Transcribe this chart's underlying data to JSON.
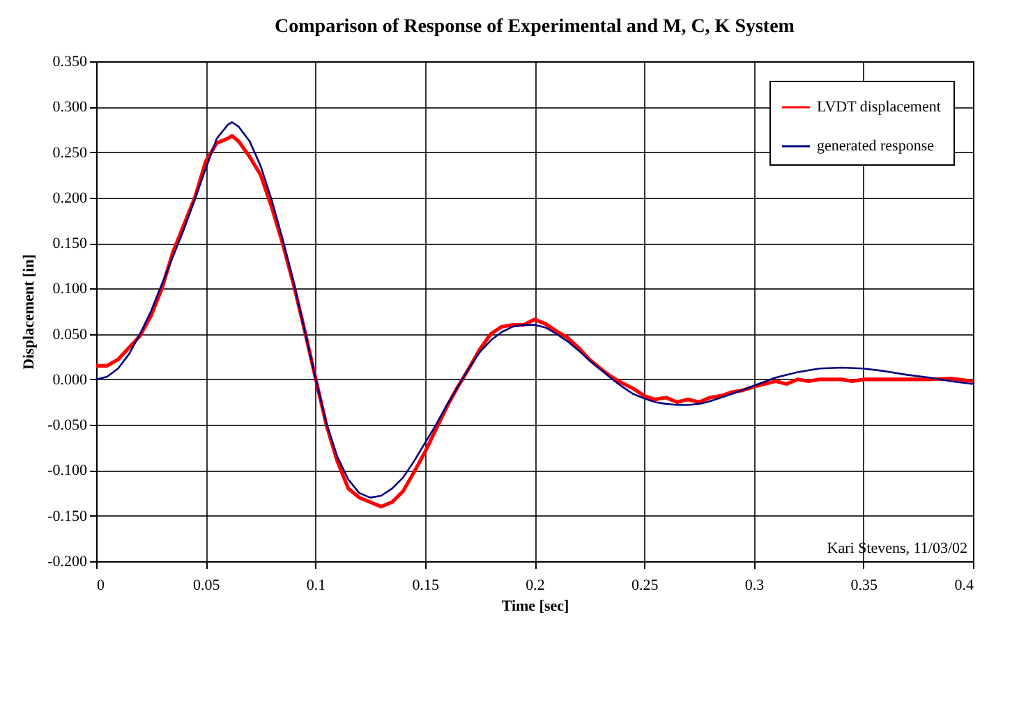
{
  "chart_data": {
    "type": "line",
    "title": "Comparison of Response of Experimental and M, C, K System",
    "xlabel": "Time [sec]",
    "ylabel": "Displacement [in]",
    "annotations": [
      "Kari Stevens, 11/03/02"
    ],
    "xlim": [
      0,
      0.4
    ],
    "xticks": [
      0,
      0.05,
      0.1,
      0.15,
      0.2,
      0.25,
      0.3,
      0.35,
      0.4
    ],
    "ylim": [
      -0.2,
      0.35
    ],
    "yticks": [
      {
        "value": -0.2,
        "label": "-0.200"
      },
      {
        "value": -0.15,
        "label": "-0.150"
      },
      {
        "value": -0.1,
        "label": "-0.100"
      },
      {
        "value": -0.05,
        "label": "-0.050"
      },
      {
        "value": 0,
        "label": "0.000"
      },
      {
        "value": 0.05,
        "label": "0.050"
      },
      {
        "value": 0.1,
        "label": "0.100"
      },
      {
        "value": 0.15,
        "label": "0.150"
      },
      {
        "value": 0.2,
        "label": "0.200"
      },
      {
        "value": 0.25,
        "label": "0.250"
      },
      {
        "value": 0.3,
        "label": "0.300"
      },
      {
        "value": 0.35,
        "label": "0.350"
      }
    ],
    "grid": true,
    "legend": "top right",
    "marker": "none",
    "line_style": "solid",
    "series": [
      {
        "name": "LVDT displacement",
        "color": "#ff0000",
        "x": [
          0,
          0.005,
          0.01,
          0.015,
          0.02,
          0.025,
          0.03,
          0.035,
          0.04,
          0.045,
          0.05,
          0.055,
          0.06,
          0.062,
          0.065,
          0.07,
          0.075,
          0.08,
          0.085,
          0.09,
          0.095,
          0.1,
          0.105,
          0.11,
          0.115,
          0.12,
          0.125,
          0.13,
          0.135,
          0.14,
          0.145,
          0.15,
          0.155,
          0.16,
          0.165,
          0.17,
          0.175,
          0.18,
          0.185,
          0.19,
          0.195,
          0.2,
          0.205,
          0.21,
          0.215,
          0.22,
          0.225,
          0.23,
          0.235,
          0.24,
          0.245,
          0.25,
          0.255,
          0.26,
          0.265,
          0.27,
          0.275,
          0.28,
          0.285,
          0.29,
          0.295,
          0.3,
          0.305,
          0.31,
          0.315,
          0.32,
          0.325,
          0.33,
          0.335,
          0.34,
          0.345,
          0.35,
          0.36,
          0.37,
          0.38,
          0.39,
          0.4
        ],
        "values": [
          0.015,
          0.015,
          0.022,
          0.035,
          0.048,
          0.07,
          0.1,
          0.14,
          0.17,
          0.2,
          0.24,
          0.26,
          0.265,
          0.268,
          0.262,
          0.245,
          0.225,
          0.19,
          0.15,
          0.105,
          0.055,
          0.002,
          -0.05,
          -0.09,
          -0.12,
          -0.13,
          -0.135,
          -0.14,
          -0.135,
          -0.123,
          -0.102,
          -0.08,
          -0.055,
          -0.03,
          -0.008,
          0.012,
          0.033,
          0.05,
          0.058,
          0.06,
          0.06,
          0.066,
          0.061,
          0.053,
          0.046,
          0.035,
          0.022,
          0.012,
          0.003,
          -0.004,
          -0.01,
          -0.018,
          -0.022,
          -0.02,
          -0.025,
          -0.022,
          -0.025,
          -0.02,
          -0.018,
          -0.014,
          -0.012,
          -0.008,
          -0.005,
          -0.002,
          -0.005,
          0,
          -0.002,
          0,
          0,
          0,
          -0.002,
          0,
          0,
          0,
          0,
          0.001,
          -0.002
        ]
      },
      {
        "name": "generated response",
        "color": "#000080",
        "x": [
          0,
          0.005,
          0.01,
          0.015,
          0.02,
          0.025,
          0.03,
          0.035,
          0.04,
          0.045,
          0.05,
          0.055,
          0.06,
          0.062,
          0.065,
          0.07,
          0.075,
          0.08,
          0.085,
          0.09,
          0.095,
          0.1,
          0.105,
          0.11,
          0.115,
          0.12,
          0.125,
          0.13,
          0.135,
          0.14,
          0.145,
          0.15,
          0.155,
          0.16,
          0.165,
          0.17,
          0.175,
          0.18,
          0.185,
          0.19,
          0.195,
          0.2,
          0.205,
          0.21,
          0.215,
          0.22,
          0.225,
          0.23,
          0.235,
          0.24,
          0.245,
          0.25,
          0.255,
          0.26,
          0.265,
          0.27,
          0.275,
          0.28,
          0.29,
          0.3,
          0.31,
          0.32,
          0.33,
          0.34,
          0.35,
          0.36,
          0.37,
          0.38,
          0.39,
          0.4
        ],
        "values": [
          0,
          0.003,
          0.012,
          0.028,
          0.05,
          0.075,
          0.105,
          0.135,
          0.165,
          0.198,
          0.232,
          0.265,
          0.28,
          0.283,
          0.278,
          0.262,
          0.235,
          0.198,
          0.155,
          0.108,
          0.055,
          0.002,
          -0.048,
          -0.085,
          -0.11,
          -0.125,
          -0.13,
          -0.128,
          -0.12,
          -0.108,
          -0.09,
          -0.07,
          -0.05,
          -0.028,
          -0.008,
          0.012,
          0.03,
          0.043,
          0.052,
          0.058,
          0.06,
          0.06,
          0.057,
          0.05,
          0.042,
          0.032,
          0.021,
          0.011,
          0.001,
          -0.008,
          -0.016,
          -0.021,
          -0.025,
          -0.027,
          -0.028,
          -0.028,
          -0.027,
          -0.024,
          -0.016,
          -0.007,
          0.002,
          0.008,
          0.012,
          0.013,
          0.012,
          0.009,
          0.005,
          0.002,
          -0.002,
          -0.005
        ]
      }
    ]
  }
}
